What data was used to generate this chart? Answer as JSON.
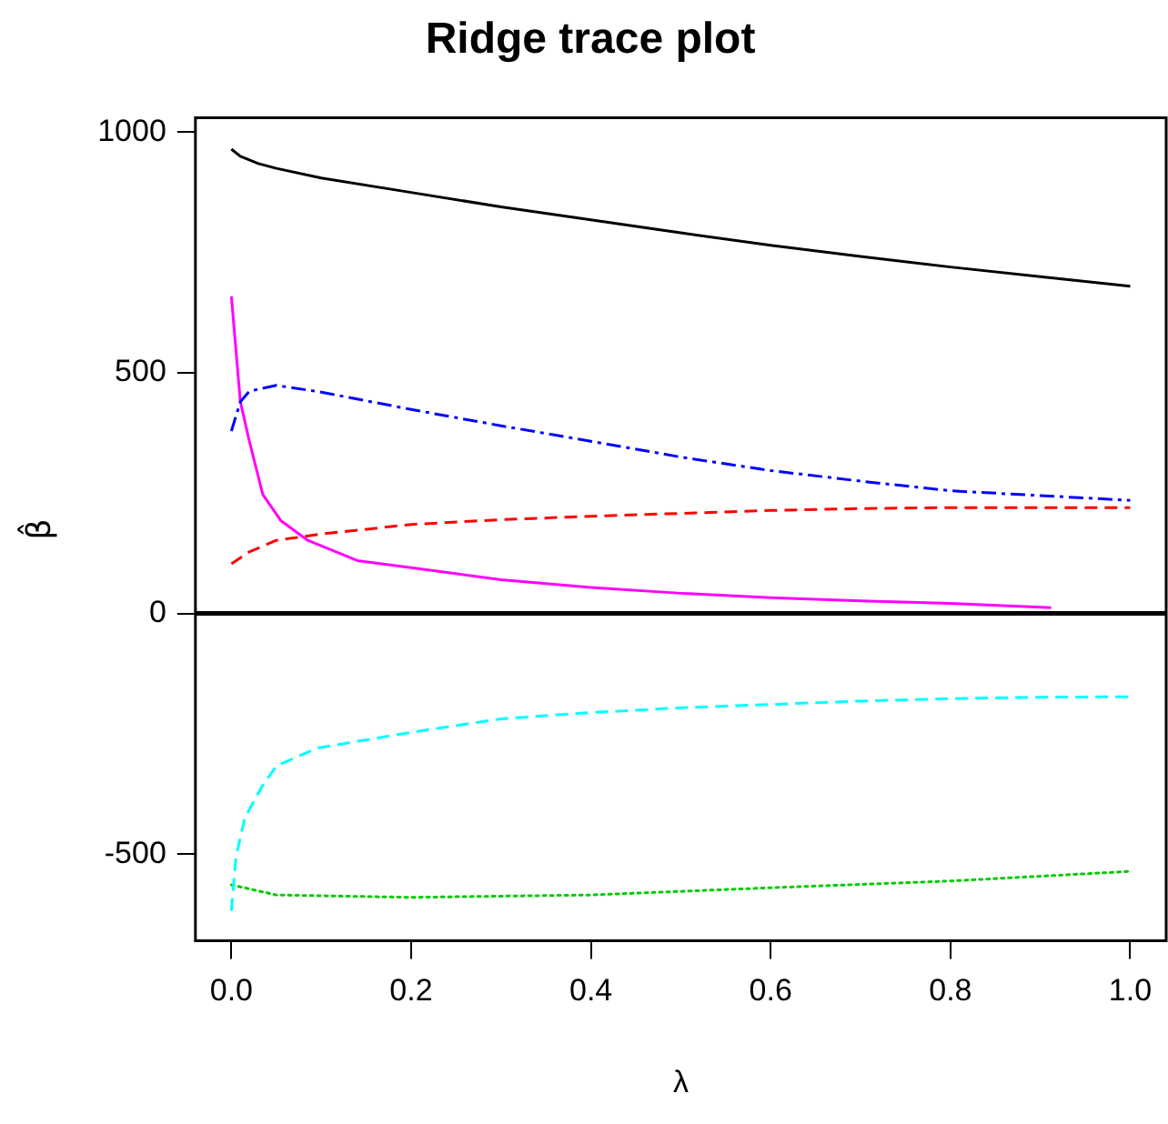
{
  "chart_data": {
    "type": "line",
    "title": "Ridge trace plot",
    "xlabel": "λ",
    "ylabel": "β̂",
    "xlim": [
      -0.04,
      1.04
    ],
    "xticks": [
      {
        "value": 0,
        "label": "0.0"
      },
      0.2,
      0.4,
      0.6,
      0.8,
      {
        "value": 1,
        "label": "1.0"
      }
    ],
    "ylim": [
      -680,
      1030
    ],
    "yticks": [
      -500,
      0,
      500,
      1000
    ],
    "grid": false,
    "legend": false,
    "marker": "none",
    "ref_lines": [
      {
        "axis": "y",
        "value": 0,
        "color": "#000000"
      }
    ],
    "series": [
      {
        "color": "#000000",
        "line_style": "solid",
        "x": [
          0,
          0.01,
          0.03,
          0.05,
          0.1,
          0.2,
          0.3,
          0.4,
          0.5,
          0.6,
          0.7,
          0.8,
          0.9,
          1.0
        ],
        "values": [
          965,
          950,
          935,
          925,
          905,
          875,
          845,
          818,
          791,
          765,
          742,
          720,
          700,
          680
        ]
      },
      {
        "color": "#0000ff",
        "line_style": "dashdot",
        "x": [
          0,
          0.01,
          0.02,
          0.05,
          0.1,
          0.2,
          0.3,
          0.4,
          0.5,
          0.6,
          0.7,
          0.8,
          0.9,
          1.0
        ],
        "values": [
          379,
          440,
          462,
          474,
          460,
          424,
          390,
          358,
          325,
          297,
          275,
          255,
          245,
          235
        ]
      },
      {
        "color": "#ff0000",
        "line_style": "dashed",
        "x": [
          0,
          0.02,
          0.05,
          0.1,
          0.2,
          0.3,
          0.4,
          0.5,
          0.6,
          0.7,
          0.8,
          0.9,
          1.0
        ],
        "values": [
          103,
          128,
          152,
          165,
          185,
          195,
          202,
          208,
          214,
          218,
          220,
          220,
          220
        ]
      },
      {
        "color": "#ff00ff",
        "line_style": "solid",
        "x": [
          0,
          0.01,
          0.02,
          0.035,
          0.055,
          0.085,
          0.14,
          0.2,
          0.3,
          0.4,
          0.5,
          0.6,
          0.7,
          0.8,
          0.912
        ],
        "values": [
          659,
          440,
          358,
          247,
          193,
          152,
          110,
          95,
          70,
          54,
          42,
          33,
          26,
          21,
          12
        ]
      },
      {
        "color": "#00ffff",
        "line_style": "dashed",
        "x": [
          0,
          0.005,
          0.015,
          0.035,
          0.05,
          0.095,
          0.2,
          0.3,
          0.4,
          0.5,
          0.6,
          0.7,
          0.8,
          0.9,
          1.0
        ],
        "values": [
          -618,
          -507,
          -424,
          -357,
          -317,
          -280,
          -247,
          -219,
          -206,
          -196,
          -189,
          -182,
          -177,
          -174,
          -173
        ]
      },
      {
        "color": "#00cc00",
        "line_style": "dotted",
        "x": [
          0,
          0.05,
          0.2,
          0.4,
          0.6,
          0.8,
          1.0
        ],
        "values": [
          -564,
          -585,
          -590,
          -585,
          -570,
          -556,
          -536
        ]
      }
    ]
  }
}
